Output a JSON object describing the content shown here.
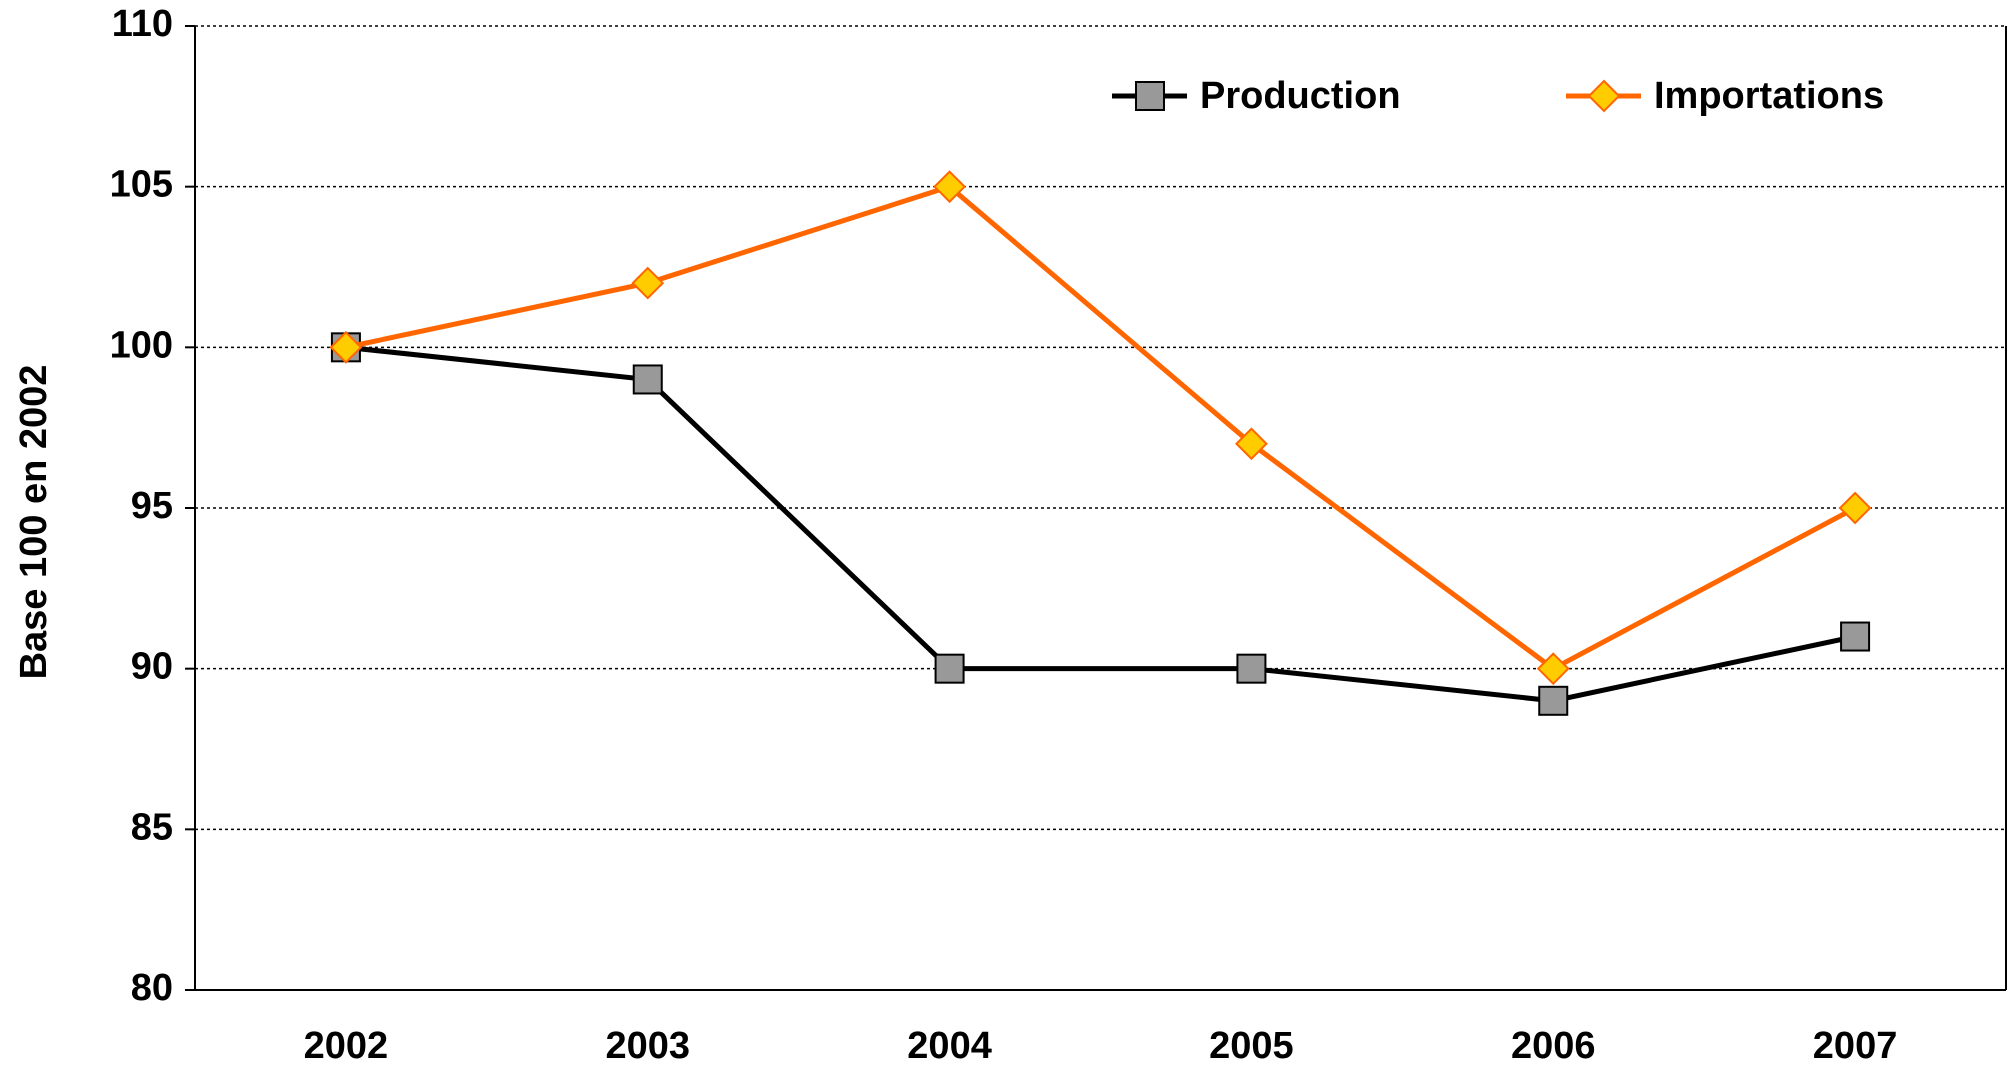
{
  "chart_data": {
    "type": "line",
    "y_label": "Base 100 en 2002",
    "categories": [
      "2002",
      "2003",
      "2004",
      "2005",
      "2006",
      "2007"
    ],
    "series": [
      {
        "name": "Production",
        "color": "#000000",
        "marker_color": "#999999",
        "marker": "square",
        "values": [
          100,
          99,
          90,
          90,
          89,
          91
        ]
      },
      {
        "name": "Importations",
        "color": "#ff6600",
        "marker_color": "#ffcc00",
        "marker": "diamond",
        "values": [
          100,
          102,
          105,
          97,
          90,
          95
        ]
      }
    ],
    "ylim": [
      80,
      110
    ],
    "yticks": [
      80,
      85,
      90,
      95,
      100,
      105,
      110
    ],
    "grid": true,
    "legend": "top-right"
  }
}
